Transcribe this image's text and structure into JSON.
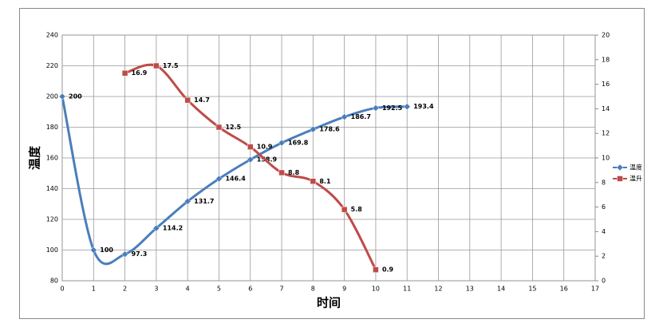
{
  "chart_data": {
    "type": "line",
    "x_label": "时间",
    "y_label": "温度",
    "xlim": [
      0,
      17
    ],
    "xticks": [
      0,
      1,
      2,
      3,
      4,
      5,
      6,
      7,
      8,
      9,
      10,
      11,
      12,
      13,
      14,
      15,
      16,
      17
    ],
    "ylim": [
      80,
      240
    ],
    "yticks": [
      80,
      100,
      120,
      140,
      160,
      180,
      200,
      220,
      240
    ],
    "y2lim": [
      0,
      20
    ],
    "y2ticks": [
      0,
      2,
      4,
      6,
      8,
      10,
      12,
      14,
      16,
      18,
      20
    ],
    "grid": true,
    "legend": "right",
    "series": [
      {
        "name": "温度",
        "color": "#4a7ebb",
        "marker": "diamond",
        "x": [
          0,
          1,
          2,
          3,
          4,
          5,
          6,
          7,
          8,
          9,
          10,
          11
        ],
        "values": [
          200,
          100,
          97.3,
          114.2,
          131.7,
          146.4,
          158.9,
          169.8,
          178.6,
          186.7,
          192.5,
          193.4
        ]
      },
      {
        "name": "温升",
        "color": "#be4b48",
        "marker": "square",
        "axis": "y2",
        "x": [
          2,
          3,
          4,
          5,
          6,
          7,
          8,
          9,
          10
        ],
        "values": [
          16.9,
          17.5,
          14.7,
          12.5,
          10.9,
          8.8,
          8.1,
          5.8,
          0.9
        ]
      }
    ]
  }
}
